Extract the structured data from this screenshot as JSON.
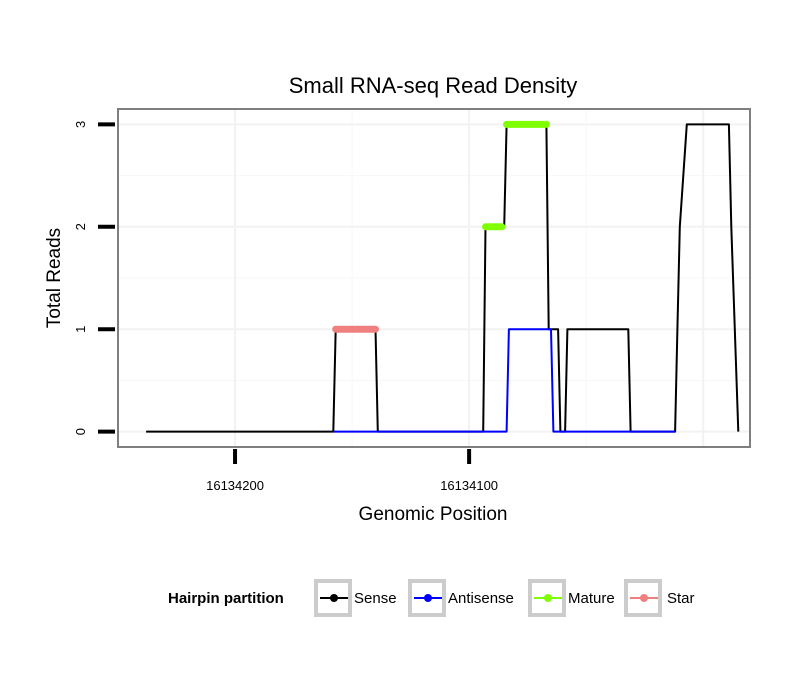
{
  "chart_data": {
    "type": "line",
    "title": "Small RNA-seq Read Density",
    "xlabel": "Genomic Position",
    "ylabel": "Total Reads",
    "x_reversed": true,
    "xlim": [
      16134250,
      16133980
    ],
    "ylim": [
      -0.15,
      3.15
    ],
    "x_ticks": [
      16134200,
      16134100
    ],
    "x_tick_labels": [
      "16134200",
      "16134100"
    ],
    "y_ticks": [
      0,
      1,
      2,
      3
    ],
    "y_tick_labels": [
      "0",
      "1",
      "2",
      "3"
    ],
    "grid": true,
    "legend_position": "bottom",
    "legend_title": "Hairpin partition",
    "series": [
      {
        "name": "Sense",
        "color": "#000000",
        "points": [
          [
            16134238,
            0
          ],
          [
            16134158,
            0
          ],
          [
            16134157,
            1
          ],
          [
            16134140,
            1
          ],
          [
            16134139,
            0
          ],
          [
            16134094,
            0
          ],
          [
            16134093,
            2
          ],
          [
            16134085,
            2
          ],
          [
            16134084,
            3
          ],
          [
            16134067,
            3
          ],
          [
            16134066,
            1
          ],
          [
            16134062,
            1
          ],
          [
            16134061,
            0
          ],
          [
            16134059,
            0
          ],
          [
            16134058,
            1
          ],
          [
            16134032,
            1
          ],
          [
            16134031,
            0
          ],
          [
            16134012,
            0
          ],
          [
            16134011,
            1
          ],
          [
            16134010,
            2
          ],
          [
            16134007,
            3
          ],
          [
            16133989,
            3
          ],
          [
            16133988,
            2
          ],
          [
            16133985,
            0
          ]
        ]
      },
      {
        "name": "Antisense",
        "color": "#0000ff",
        "points": [
          [
            16134158,
            0
          ],
          [
            16134084,
            0
          ],
          [
            16134083,
            1
          ],
          [
            16134065,
            1
          ],
          [
            16134064,
            0
          ],
          [
            16134012,
            0
          ]
        ]
      },
      {
        "name": "Mature",
        "color": "#7fff00",
        "segments": [
          {
            "x_start": 16134093,
            "x_end": 16134086,
            "y": 2
          },
          {
            "x_start": 16134084,
            "x_end": 16134067,
            "y": 3
          }
        ]
      },
      {
        "name": "Star",
        "color": "#f08080",
        "segments": [
          {
            "x_start": 16134157,
            "x_end": 16134140,
            "y": 1
          }
        ]
      }
    ]
  }
}
